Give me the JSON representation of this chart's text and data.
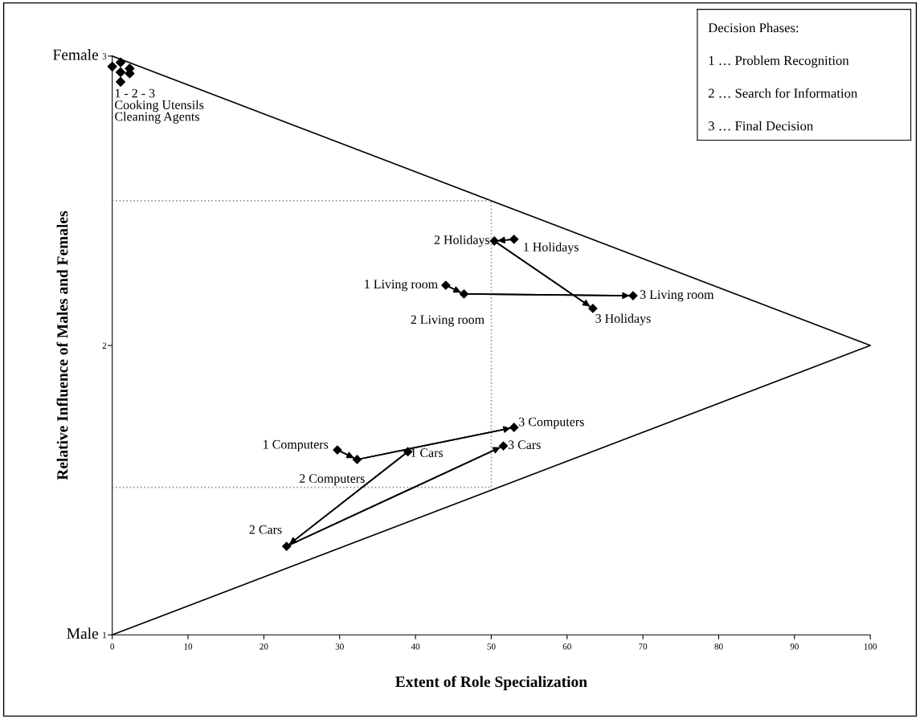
{
  "chart_data": {
    "type": "scatter",
    "xlabel": "Extent of Role Specialization",
    "ylabel": "Relative Influence of Males and Females",
    "xlim": [
      0,
      100
    ],
    "ylim": [
      1,
      3
    ],
    "xticks": [
      0,
      10,
      20,
      30,
      40,
      50,
      60,
      70,
      80,
      90,
      100
    ],
    "yticks": [
      1,
      2,
      3
    ],
    "grid": false,
    "marker": "diamond",
    "series": [
      {
        "type": "line",
        "color": "#000000",
        "line_style": "solid",
        "marker": "none",
        "x": [
          0,
          100,
          0
        ],
        "values": [
          3,
          2,
          1
        ]
      },
      {
        "type": "line",
        "color": "#999999",
        "line_style": "dotted",
        "marker": "none",
        "x": [
          0,
          50,
          50,
          0
        ],
        "values": [
          2.5,
          2.5,
          1.51,
          1.51
        ]
      },
      {
        "color": "#000000",
        "x": [
          0,
          1.1,
          1.1,
          1.1,
          2.3,
          2.3
        ],
        "values": [
          2.964,
          2.978,
          2.944,
          2.911,
          2.957,
          2.94
        ]
      },
      {
        "type": "line",
        "color": "#000000",
        "x": [
          53.0,
          50.4,
          63.4
        ],
        "values": [
          2.367,
          2.361,
          2.128
        ]
      },
      {
        "type": "line",
        "color": "#000000",
        "x": [
          44.0,
          46.4,
          68.7
        ],
        "values": [
          2.208,
          2.178,
          2.172
        ]
      },
      {
        "type": "line",
        "color": "#000000",
        "x": [
          29.7,
          32.3,
          53.0
        ],
        "values": [
          1.639,
          1.606,
          1.717
        ]
      },
      {
        "type": "line",
        "color": "#000000",
        "x": [
          39.0,
          23.0,
          51.6
        ],
        "values": [
          1.633,
          1.306,
          1.653
        ]
      }
    ],
    "annotations": [
      "Female",
      "Male",
      "Decision Phases:",
      "1 … Problem Recognition",
      "2 … Search for Information",
      "3 … Final Decision",
      {
        "text": "1 - 2 - 3\nCooking Utensils\nCleaning Agents",
        "x": 0,
        "y": 2.911
      },
      {
        "text": "1 Holidays",
        "x": 53.0,
        "y": 2.367
      },
      {
        "text": "2 Holidays",
        "x": 50.4,
        "y": 2.361
      },
      {
        "text": "3 Holidays",
        "x": 63.4,
        "y": 2.128
      },
      {
        "text": "1 Living room",
        "x": 44.0,
        "y": 2.208
      },
      {
        "text": "2 Living room",
        "x": 46.4,
        "y": 2.178
      },
      {
        "text": "3 Living room",
        "x": 68.7,
        "y": 2.172
      },
      {
        "text": "1 Computers",
        "x": 29.7,
        "y": 1.639
      },
      {
        "text": "2 Computers",
        "x": 32.3,
        "y": 1.606
      },
      {
        "text": "3 Computers",
        "x": 53.0,
        "y": 1.717
      },
      {
        "text": "1 Cars",
        "x": 39.0,
        "y": 1.633
      },
      {
        "text": "2 Cars",
        "x": 23.0,
        "y": 1.306
      },
      {
        "text": "3 Cars",
        "x": 51.6,
        "y": 1.653
      }
    ]
  }
}
